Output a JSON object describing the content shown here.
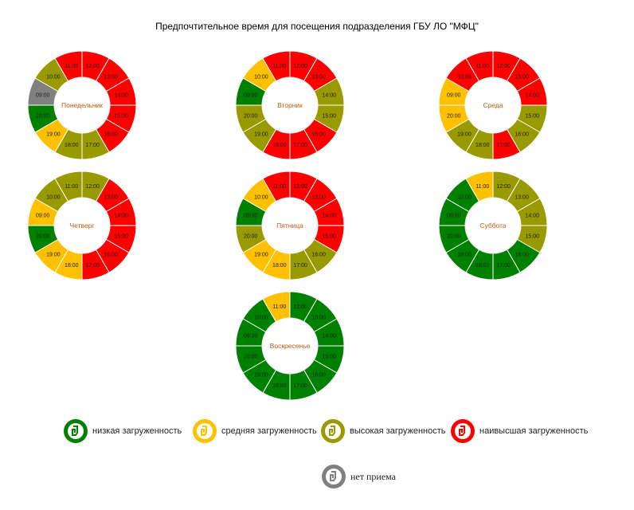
{
  "title": "Предпочтительное время для посещения подразделения ГБУ ЛО \"МФЦ\"",
  "colors": {
    "low": "#008000",
    "medium": "#FFC000",
    "high": "#999900",
    "highest": "#FF0000",
    "closed": "#808080"
  },
  "chart_data": {
    "type": "donut",
    "days": [
      {
        "name": "Понедельник",
        "slices": [
          {
            "time": "12:00",
            "load": "highest"
          },
          {
            "time": "13:00",
            "load": "highest"
          },
          {
            "time": "14:00",
            "load": "highest"
          },
          {
            "time": "15:00",
            "load": "highest"
          },
          {
            "time": "16:00",
            "load": "highest"
          },
          {
            "time": "17:00",
            "load": "high"
          },
          {
            "time": "18:00",
            "load": "high"
          },
          {
            "time": "19:00",
            "load": "medium"
          },
          {
            "time": "20:00",
            "load": "low"
          },
          {
            "time": "09:00",
            "load": "closed"
          },
          {
            "time": "10:00",
            "load": "high"
          },
          {
            "time": "11:00",
            "load": "highest"
          }
        ]
      },
      {
        "name": "Вторник",
        "slices": [
          {
            "time": "12:00",
            "load": "highest"
          },
          {
            "time": "13:00",
            "load": "highest"
          },
          {
            "time": "14:00",
            "load": "high"
          },
          {
            "time": "15:00",
            "load": "high"
          },
          {
            "time": "16:00",
            "load": "highest"
          },
          {
            "time": "17:00",
            "load": "highest"
          },
          {
            "time": "18:00",
            "load": "highest"
          },
          {
            "time": "19:00",
            "load": "high"
          },
          {
            "time": "20:00",
            "load": "high"
          },
          {
            "time": "09:00",
            "load": "low"
          },
          {
            "time": "10:00",
            "load": "medium"
          },
          {
            "time": "11:00",
            "load": "highest"
          }
        ]
      },
      {
        "name": "Среда",
        "slices": [
          {
            "time": "12:00",
            "load": "highest"
          },
          {
            "time": "13:00",
            "load": "highest"
          },
          {
            "time": "14:00",
            "load": "highest"
          },
          {
            "time": "15:00",
            "load": "high"
          },
          {
            "time": "16:00",
            "load": "high"
          },
          {
            "time": "17:00",
            "load": "highest"
          },
          {
            "time": "18:00",
            "load": "high"
          },
          {
            "time": "19:00",
            "load": "high"
          },
          {
            "time": "20:00",
            "load": "medium"
          },
          {
            "time": "09:00",
            "load": "medium"
          },
          {
            "time": "10:00",
            "load": "highest"
          },
          {
            "time": "11:00",
            "load": "highest"
          }
        ]
      },
      {
        "name": "Четверг",
        "slices": [
          {
            "time": "12:00",
            "load": "high"
          },
          {
            "time": "13:00",
            "load": "highest"
          },
          {
            "time": "14:00",
            "load": "highest"
          },
          {
            "time": "15:00",
            "load": "highest"
          },
          {
            "time": "16:00",
            "load": "highest"
          },
          {
            "time": "17:00",
            "load": "highest"
          },
          {
            "time": "18:00",
            "load": "medium"
          },
          {
            "time": "19:00",
            "load": "medium"
          },
          {
            "time": "20:00",
            "load": "low"
          },
          {
            "time": "09:00",
            "load": "medium"
          },
          {
            "time": "10:00",
            "load": "high"
          },
          {
            "time": "11:00",
            "load": "high"
          }
        ]
      },
      {
        "name": "Пятница",
        "slices": [
          {
            "time": "12:00",
            "load": "highest"
          },
          {
            "time": "13:00",
            "load": "highest"
          },
          {
            "time": "14:00",
            "load": "highest"
          },
          {
            "time": "15:00",
            "load": "highest"
          },
          {
            "time": "16:00",
            "load": "high"
          },
          {
            "time": "17:00",
            "load": "high"
          },
          {
            "time": "18:00",
            "load": "medium"
          },
          {
            "time": "19:00",
            "load": "medium"
          },
          {
            "time": "20:00",
            "load": "high"
          },
          {
            "time": "09:00",
            "load": "low"
          },
          {
            "time": "10:00",
            "load": "medium"
          },
          {
            "time": "11:00",
            "load": "highest"
          }
        ]
      },
      {
        "name": "Суббота",
        "slices": [
          {
            "time": "12:00",
            "load": "high"
          },
          {
            "time": "13:00",
            "load": "high"
          },
          {
            "time": "14:00",
            "load": "high"
          },
          {
            "time": "15:00",
            "load": "high"
          },
          {
            "time": "16:00",
            "load": "low"
          },
          {
            "time": "17:00",
            "load": "low"
          },
          {
            "time": "18:00",
            "load": "low"
          },
          {
            "time": "19:00",
            "load": "low"
          },
          {
            "time": "20:00",
            "load": "low"
          },
          {
            "time": "09:00",
            "load": "low"
          },
          {
            "time": "10:00",
            "load": "low"
          },
          {
            "time": "11:00",
            "load": "medium"
          }
        ]
      },
      {
        "name": "Воскресенье",
        "slices": [
          {
            "time": "12:00",
            "load": "low"
          },
          {
            "time": "13:00",
            "load": "low"
          },
          {
            "time": "14:00",
            "load": "low"
          },
          {
            "time": "15:00",
            "load": "low"
          },
          {
            "time": "16:00",
            "load": "low"
          },
          {
            "time": "17:00",
            "load": "low"
          },
          {
            "time": "18:00",
            "load": "low"
          },
          {
            "time": "19:00",
            "load": "low"
          },
          {
            "time": "20:00",
            "load": "low"
          },
          {
            "time": "09:00",
            "load": "low"
          },
          {
            "time": "10:00",
            "load": "low"
          },
          {
            "time": "11:00",
            "load": "medium"
          }
        ]
      }
    ]
  },
  "legend": {
    "low": "низкая загруженность",
    "medium": "средняя загруженность",
    "high": "высокая загруженность",
    "highest": "наивысшая загруженность",
    "closed": "нет приема"
  }
}
